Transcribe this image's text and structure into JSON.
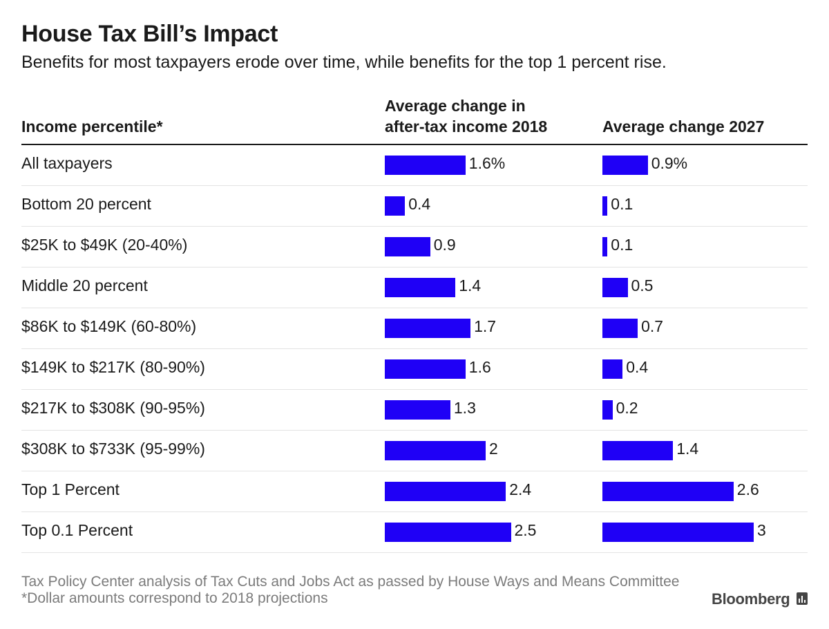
{
  "title": "House Tax Bill’s Impact",
  "subtitle": "Benefits for most taxpayers erode over time, while benefits for the top 1 percent rise.",
  "headers": {
    "label": "Income percentile*",
    "col2018_line1": "Average change in",
    "col2018_line2": "after-tax income 2018",
    "col2027": "Average change 2027"
  },
  "footer": {
    "source": "Tax Policy Center analysis of Tax Cuts and Jobs Act as passed by House Ways and Means Committee",
    "note": "*Dollar amounts correspond to 2018 projections",
    "logo": "Bloomberg"
  },
  "colors": {
    "bar": "#1f00f6"
  },
  "chart_data": {
    "type": "bar",
    "orientation": "horizontal",
    "categories": [
      "All taxpayers",
      "Bottom 20 percent",
      "$25K to $49K (20-40%)",
      "Middle 20 percent",
      "$86K to $149K (60-80%)",
      "$149K to $217K (80-90%)",
      "$217K to $308K (90-95%)",
      "$308K to $733K (95-99%)",
      "Top 1 Percent",
      "Top 0.1 Percent"
    ],
    "series": [
      {
        "name": "Average change in after-tax income 2018",
        "values": [
          1.6,
          0.4,
          0.9,
          1.4,
          1.7,
          1.6,
          1.3,
          2,
          2.4,
          2.5
        ],
        "labels": [
          "1.6%",
          "0.4",
          "0.9",
          "1.4",
          "1.7",
          "1.6",
          "1.3",
          "2",
          "2.4",
          "2.5"
        ]
      },
      {
        "name": "Average change 2027",
        "values": [
          0.9,
          0.1,
          0.1,
          0.5,
          0.7,
          0.4,
          0.2,
          1.4,
          2.6,
          3
        ],
        "labels": [
          "0.9%",
          "0.1",
          "0.1",
          "0.5",
          "0.7",
          "0.4",
          "0.2",
          "1.4",
          "2.6",
          "3"
        ]
      }
    ],
    "xlim": [
      0,
      3
    ],
    "unit": "%"
  }
}
